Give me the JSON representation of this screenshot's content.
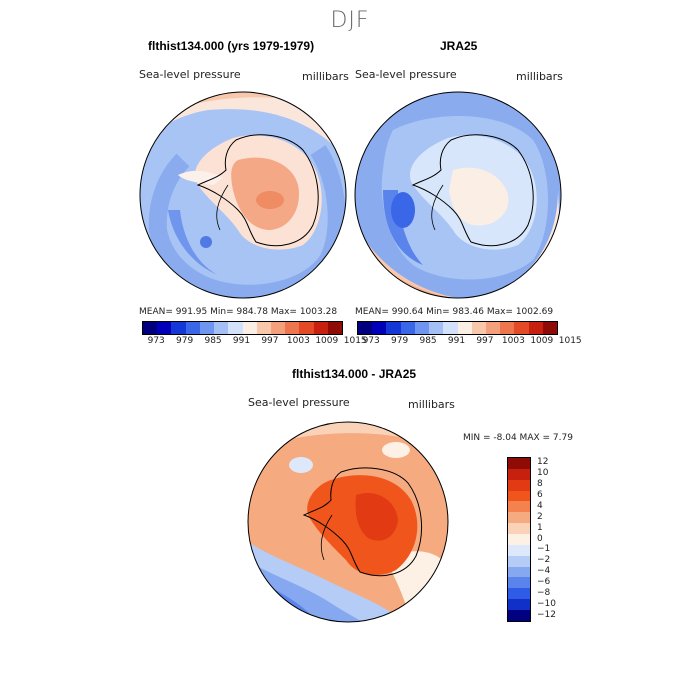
{
  "title": "DJF",
  "panels": [
    {
      "title": "flthist134.000 (yrs 1979-1979)",
      "field_label": "Sea-level pressure",
      "units": "millibars",
      "stats": "MEAN= 991.95   Min= 984.78   Max= 1003.28"
    },
    {
      "title": "JRA25",
      "field_label": "Sea-level pressure",
      "units": "millibars",
      "stats": "MEAN= 990.64   Min= 983.46   Max= 1002.69"
    },
    {
      "title": "flthist134.000 - JRA25",
      "field_label": "Sea-level pressure",
      "units": "millibars",
      "stats": "MIN =   -8.04  MAX =    7.79"
    }
  ],
  "colorbar_top": {
    "ticks": [
      "973",
      "979",
      "985",
      "991",
      "997",
      "1003",
      "1009",
      "1015"
    ],
    "colors": [
      "#00007f",
      "#0000b8",
      "#1438d8",
      "#3a66e8",
      "#6e96f0",
      "#a4bff6",
      "#d2e2fb",
      "#fbeee4",
      "#f9c7aa",
      "#f4a07c",
      "#ee764e",
      "#e44a26",
      "#c8200e",
      "#8e0c05"
    ]
  },
  "colorbar_diff": {
    "ticks": [
      "12",
      "10",
      "8",
      "6",
      "4",
      "2",
      "1",
      "0",
      "−1",
      "−2",
      "−4",
      "−6",
      "−8",
      "−10",
      "−12"
    ],
    "colors": [
      "#8e0c05",
      "#c8200e",
      "#e23a12",
      "#f0561c",
      "#f4824e",
      "#f6aa80",
      "#f9d2b8",
      "#fdf0e4",
      "#dde8fb",
      "#b4ccf6",
      "#86a8f0",
      "#5a84ec",
      "#2e5ce6",
      "#1030c8",
      "#000080"
    ]
  }
}
